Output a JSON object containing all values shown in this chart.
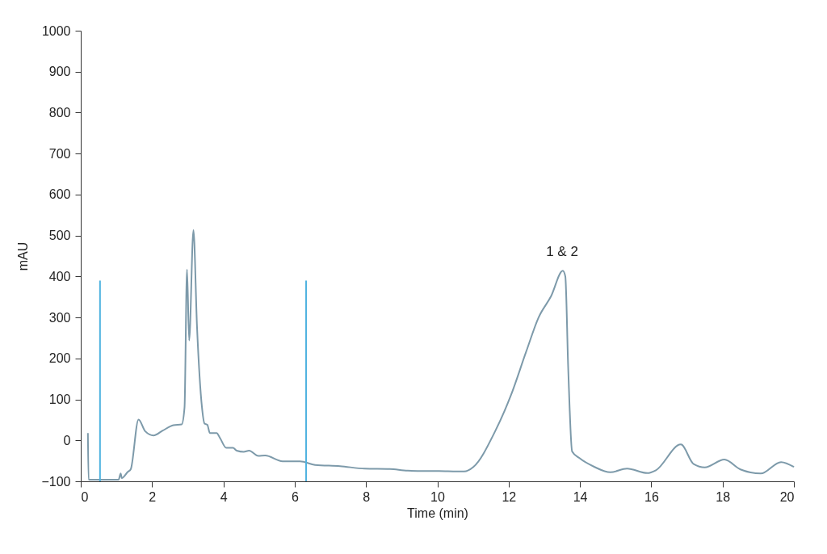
{
  "chart_data": {
    "type": "line",
    "xlabel": "Time (min)",
    "ylabel": "mAU",
    "xlim": [
      0,
      20
    ],
    "ylim": [
      -100,
      1000
    ],
    "xticks": [
      0,
      2,
      4,
      6,
      8,
      10,
      12,
      14,
      16,
      18,
      20
    ],
    "yticks": [
      -100,
      0,
      100,
      200,
      300,
      400,
      500,
      600,
      700,
      800,
      900,
      1000
    ],
    "line_style": "solid",
    "series": [
      {
        "color": "#7d9aaa",
        "x": [
          0.2,
          0.22,
          0.5,
          1.06,
          1.12,
          1.15,
          1.32,
          1.4,
          1.62,
          1.81,
          2.04,
          2.3,
          2.6,
          2.83,
          2.91,
          2.98,
          3.04,
          3.16,
          3.26,
          3.4,
          3.47,
          3.55,
          3.62,
          3.81,
          3.91,
          4.08,
          4.27,
          4.37,
          4.57,
          4.72,
          4.98,
          5.17,
          5.66,
          6.15,
          6.57,
          7.27,
          7.96,
          8.67,
          9.17,
          10.05,
          10.75,
          11.01,
          11.62,
          12.06,
          12.49,
          12.84,
          13.19,
          13.52,
          13.59,
          13.67,
          13.78,
          13.98,
          14.41,
          14.85,
          15.32,
          15.89,
          16.13,
          16.83,
          17.19,
          17.5,
          18.05,
          18.5,
          19.07,
          19.64,
          20
        ],
        "values": [
          18,
          -96,
          -96,
          -96,
          -81,
          -92,
          -77,
          -71,
          51,
          22,
          12,
          24,
          37,
          39,
          80,
          417,
          244,
          513,
          278,
          80,
          41,
          38,
          18,
          18,
          5,
          -18,
          -18,
          -25,
          -28,
          -25,
          -38,
          -37,
          -51,
          -51,
          -60,
          -63,
          -69,
          -70,
          -74,
          -75,
          -76,
          -65,
          22,
          109,
          216,
          300,
          352,
          414,
          400,
          178,
          -27,
          -43,
          -65,
          -78,
          -69,
          -80,
          -73,
          -10,
          -58,
          -66,
          -47,
          -71,
          -81,
          -53,
          -65
        ]
      },
      {
        "color": "#4fb3e0",
        "x": [
          0.54,
          0.54
        ],
        "values": [
          -100,
          390
        ]
      },
      {
        "color": "#4fb3e0",
        "x": [
          6.32,
          6.32
        ],
        "values": [
          -100,
          390
        ]
      }
    ],
    "annotations": [
      {
        "text": "1 & 2",
        "x": 13.5,
        "y": 415
      }
    ]
  }
}
